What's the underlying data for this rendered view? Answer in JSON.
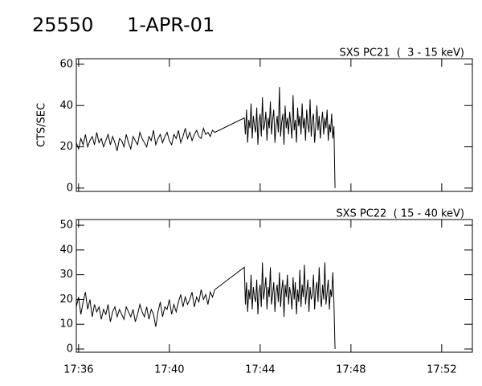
{
  "header": {
    "id": "25550",
    "date": "1-APR-01"
  },
  "chart_data": [
    {
      "type": "line",
      "title": "SXS PC21  (  3 - 15 keV)",
      "ylabel": "CTS/SEC",
      "color": "#000000",
      "xlim": [
        35.9,
        53.35
      ],
      "xticks": [
        36,
        40,
        44,
        48,
        52
      ],
      "ylim": [
        -1.6,
        62.7
      ],
      "yticks": [
        0,
        20,
        40,
        60
      ],
      "x": [
        35.9,
        36.0,
        36.1,
        36.2,
        36.3,
        36.4,
        36.5,
        36.6,
        36.7,
        36.8,
        36.9,
        37.0,
        37.1,
        37.2,
        37.3,
        37.4,
        37.5,
        37.6,
        37.7,
        37.8,
        37.9,
        38.0,
        38.1,
        38.2,
        38.3,
        38.4,
        38.5,
        38.6,
        38.7,
        38.8,
        38.9,
        39.0,
        39.1,
        39.2,
        39.3,
        39.4,
        39.5,
        39.6,
        39.7,
        39.8,
        39.9,
        40.0,
        40.1,
        40.2,
        40.3,
        40.4,
        40.5,
        40.6,
        40.7,
        40.8,
        40.9,
        41.0,
        41.1,
        41.2,
        41.3,
        41.4,
        41.5,
        41.6,
        41.7,
        41.8,
        41.9,
        42.0,
        43.3,
        43.35,
        43.4,
        43.45,
        43.5,
        43.55,
        43.6,
        43.65,
        43.7,
        43.75,
        43.8,
        43.85,
        43.9,
        43.95,
        44.0,
        44.05,
        44.1,
        44.15,
        44.2,
        44.25,
        44.3,
        44.35,
        44.4,
        44.45,
        44.5,
        44.55,
        44.6,
        44.65,
        44.7,
        44.75,
        44.8,
        44.85,
        44.9,
        44.95,
        45.0,
        45.05,
        45.1,
        45.15,
        45.2,
        45.25,
        45.3,
        45.35,
        45.4,
        45.45,
        45.5,
        45.55,
        45.6,
        45.65,
        45.7,
        45.75,
        45.8,
        45.85,
        45.9,
        45.95,
        46.0,
        46.05,
        46.1,
        46.15,
        46.2,
        46.25,
        46.3,
        46.35,
        46.4,
        46.45,
        46.5,
        46.55,
        46.6,
        46.65,
        46.7,
        46.75,
        46.8,
        46.85,
        46.9,
        46.95,
        47.0,
        47.05,
        47.1,
        47.15,
        47.2,
        47.25,
        47.3
      ],
      "values": [
        22,
        19,
        24,
        21,
        26,
        20,
        23,
        25,
        21,
        27,
        22,
        24,
        20,
        23,
        26,
        21,
        25,
        22,
        18,
        24,
        23,
        20,
        26,
        22,
        19,
        25,
        23,
        21,
        27,
        24,
        22,
        20,
        25,
        23,
        28,
        21,
        24,
        26,
        22,
        25,
        27,
        23,
        21,
        26,
        24,
        28,
        22,
        25,
        29,
        24,
        27,
        23,
        26,
        28,
        25,
        24,
        29,
        26,
        27,
        25,
        28,
        27,
        34,
        26,
        38,
        22,
        33,
        29,
        41,
        24,
        35,
        30,
        27,
        39,
        21,
        32,
        36,
        25,
        44,
        28,
        31,
        37,
        23,
        34,
        29,
        42,
        26,
        33,
        38,
        22,
        30,
        35,
        27,
        49,
        25,
        32,
        36,
        21,
        40,
        29,
        34,
        26,
        37,
        31,
        24,
        45,
        28,
        33,
        22,
        39,
        30,
        35,
        26,
        41,
        29,
        34,
        23,
        38,
        31,
        27,
        43,
        25,
        33,
        36,
        22,
        30,
        40,
        28,
        35,
        24,
        32,
        37,
        26,
        34,
        29,
        38,
        23,
        31,
        27,
        36,
        24,
        30,
        0
      ]
    },
    {
      "type": "line",
      "title": "SXS PC22  ( 15 - 40 keV)",
      "color": "#000000",
      "xlim": [
        35.9,
        53.35
      ],
      "xticks": [
        {
          "value": 36,
          "label": "17:36"
        },
        {
          "value": 40,
          "label": "17:40"
        },
        {
          "value": 44,
          "label": "17:44"
        },
        {
          "value": 48,
          "label": "17:48"
        },
        {
          "value": 52,
          "label": "17:52"
        }
      ],
      "ylim": [
        -1.3,
        52.3
      ],
      "yticks": [
        0,
        10,
        20,
        30,
        40,
        50
      ],
      "x": [
        35.9,
        36.0,
        36.1,
        36.2,
        36.3,
        36.4,
        36.5,
        36.6,
        36.7,
        36.8,
        36.9,
        37.0,
        37.1,
        37.2,
        37.3,
        37.4,
        37.5,
        37.6,
        37.7,
        37.8,
        37.9,
        38.0,
        38.1,
        38.2,
        38.3,
        38.4,
        38.5,
        38.6,
        38.7,
        38.8,
        38.9,
        39.0,
        39.1,
        39.2,
        39.3,
        39.4,
        39.5,
        39.6,
        39.7,
        39.8,
        39.9,
        40.0,
        40.1,
        40.2,
        40.3,
        40.4,
        40.5,
        40.6,
        40.7,
        40.8,
        40.9,
        41.0,
        41.1,
        41.2,
        41.3,
        41.4,
        41.5,
        41.6,
        41.7,
        41.8,
        41.9,
        42.0,
        43.3,
        43.35,
        43.4,
        43.45,
        43.5,
        43.55,
        43.6,
        43.65,
        43.7,
        43.75,
        43.8,
        43.85,
        43.9,
        43.95,
        44.0,
        44.05,
        44.1,
        44.15,
        44.2,
        44.25,
        44.3,
        44.35,
        44.4,
        44.45,
        44.5,
        44.55,
        44.6,
        44.65,
        44.7,
        44.75,
        44.8,
        44.85,
        44.9,
        44.95,
        45.0,
        45.05,
        45.1,
        45.15,
        45.2,
        45.25,
        45.3,
        45.35,
        45.4,
        45.45,
        45.5,
        45.55,
        45.6,
        45.65,
        45.7,
        45.75,
        45.8,
        45.85,
        45.9,
        45.95,
        46.0,
        46.05,
        46.1,
        46.15,
        46.2,
        46.25,
        46.3,
        46.35,
        46.4,
        46.45,
        46.5,
        46.55,
        46.6,
        46.65,
        46.7,
        46.75,
        46.8,
        46.85,
        46.9,
        46.95,
        47.0,
        47.05,
        47.1,
        47.15,
        47.2,
        47.25,
        47.3
      ],
      "values": [
        17,
        21,
        14,
        19,
        23,
        16,
        20,
        13,
        18,
        15,
        17,
        12,
        16,
        14,
        18,
        11,
        15,
        17,
        13,
        16,
        14,
        12,
        17,
        15,
        13,
        16,
        11,
        14,
        18,
        15,
        13,
        17,
        12,
        16,
        14,
        9,
        15,
        19,
        13,
        17,
        16,
        20,
        14,
        18,
        15,
        19,
        22,
        17,
        21,
        18,
        20,
        23,
        17,
        21,
        19,
        24,
        20,
        22,
        18,
        23,
        21,
        24,
        33,
        18,
        27,
        15,
        24,
        20,
        30,
        16,
        25,
        21,
        19,
        28,
        14,
        23,
        26,
        17,
        35,
        20,
        24,
        29,
        16,
        25,
        21,
        33,
        18,
        22,
        27,
        15,
        23,
        26,
        19,
        31,
        17,
        24,
        28,
        13,
        26,
        21,
        30,
        18,
        25,
        22,
        16,
        29,
        20,
        27,
        14,
        24,
        19,
        32,
        17,
        26,
        21,
        34,
        18,
        23,
        28,
        15,
        25,
        20,
        22,
        30,
        16,
        24,
        27,
        19,
        33,
        21,
        17,
        26,
        20,
        35,
        18,
        23,
        28,
        16,
        24,
        21,
        31,
        19,
        0
      ]
    }
  ]
}
